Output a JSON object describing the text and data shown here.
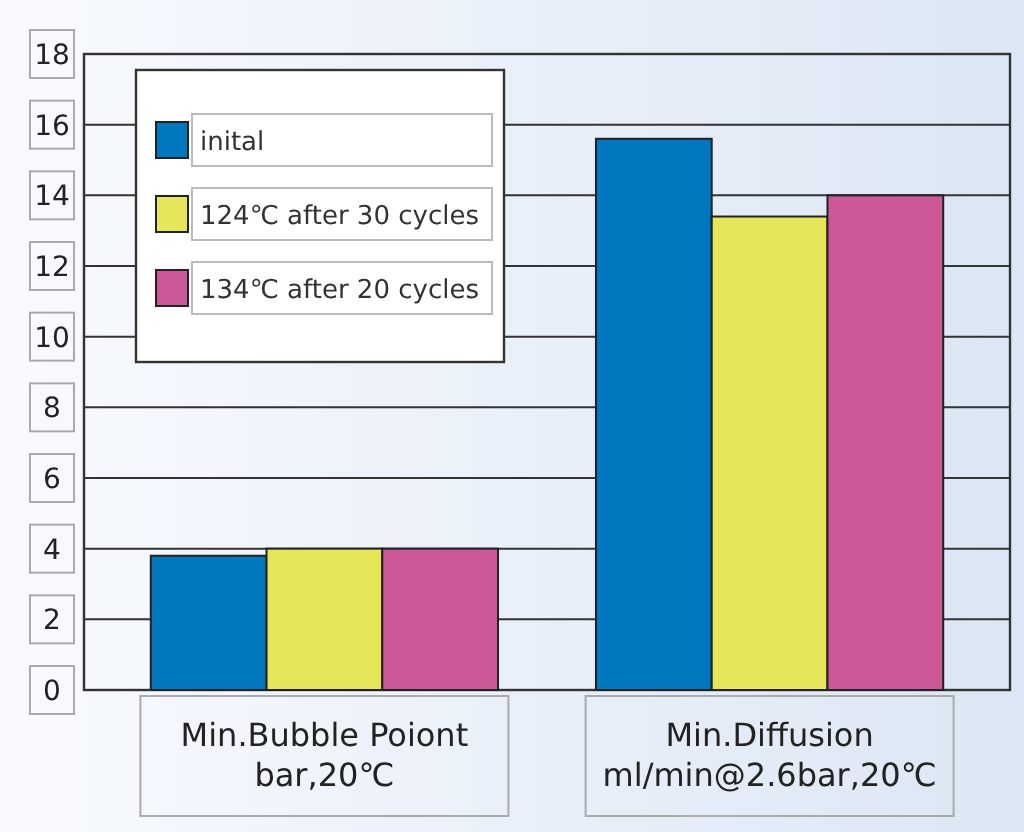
{
  "chart_data": {
    "type": "bar",
    "categories": [
      "Min.Bubble Poiont\nbar,20℃",
      "Min.Diffusion\nml/min@2.6bar,20℃"
    ],
    "series": [
      {
        "name": "inital",
        "color": "#0077be",
        "values": [
          3.8,
          15.6
        ]
      },
      {
        "name": "124℃ after 30 cycles",
        "color": "#e6e65a",
        "values": [
          4,
          13.4
        ]
      },
      {
        "name": "134℃ after 20 cycles",
        "color": "#cc5898",
        "values": [
          4,
          14
        ]
      }
    ],
    "ylim": [
      0,
      18
    ],
    "yticks": [
      0,
      2,
      4,
      6,
      8,
      10,
      12,
      14,
      16,
      18
    ],
    "grid": "y",
    "legend": "top left"
  }
}
